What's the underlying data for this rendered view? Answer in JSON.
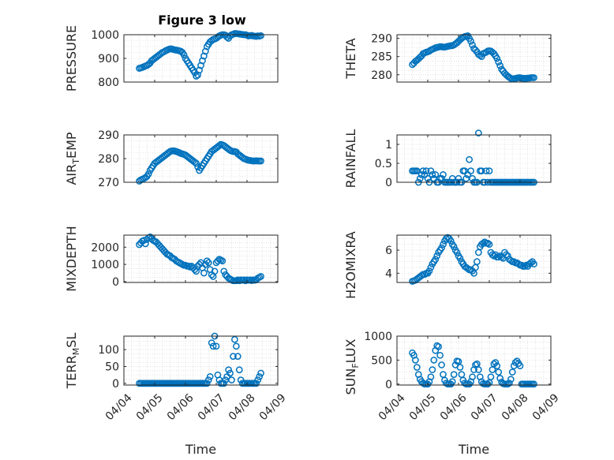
{
  "figure_title": "Figure 3 low",
  "xlabel": "Time",
  "x_ticks": [
    "04/04",
    "04/05",
    "04/06",
    "04/07",
    "04/08",
    "04/09"
  ],
  "marker_color": "#0072BD",
  "chart_data": [
    {
      "type": "scatter",
      "id": "pressure",
      "ylabel_main": "PRESSURE",
      "ylabel_sub": "",
      "ylabel_tail": "",
      "ylim": [
        800,
        1000
      ],
      "yticks": [
        800,
        900,
        1000
      ],
      "x": [
        4.5,
        4.55,
        4.6,
        4.65,
        4.7,
        4.75,
        4.8,
        4.85,
        4.9,
        4.95,
        5.0,
        5.05,
        5.1,
        5.15,
        5.2,
        5.25,
        5.3,
        5.35,
        5.4,
        5.45,
        5.5,
        5.55,
        5.6,
        5.65,
        5.7,
        5.75,
        5.8,
        5.85,
        5.9,
        5.95,
        6.0,
        6.05,
        6.1,
        6.15,
        6.2,
        6.25,
        6.3,
        6.35,
        6.4,
        6.45,
        6.5,
        6.55,
        6.6,
        6.65,
        6.7,
        6.75,
        6.8,
        6.85,
        6.9,
        6.95,
        7.0,
        7.05,
        7.1,
        7.15,
        7.2,
        7.25,
        7.3,
        7.35,
        7.4,
        7.45,
        7.5,
        7.55,
        7.6,
        7.65,
        7.7,
        7.75,
        7.8,
        7.85,
        7.9,
        7.95,
        8.0,
        8.05,
        8.1,
        8.15,
        8.2,
        8.25,
        8.3,
        8.35,
        8.4,
        8.45
      ],
      "y": [
        858,
        860,
        862,
        865,
        868,
        870,
        875,
        880,
        890,
        895,
        900,
        905,
        910,
        915,
        920,
        925,
        928,
        932,
        935,
        938,
        940,
        940,
        938,
        936,
        935,
        934,
        932,
        930,
        925,
        915,
        900,
        890,
        880,
        870,
        860,
        850,
        840,
        825,
        830,
        850,
        870,
        890,
        910,
        930,
        950,
        960,
        970,
        975,
        980,
        982,
        985,
        990,
        995,
        998,
        1000,
        1000,
        998,
        990,
        985,
        995,
        1000,
        1002,
        1005,
        1005,
        1004,
        1003,
        1002,
        1001,
        1000,
        1000,
        998,
        995,
        996,
        997,
        995,
        994,
        993,
        995,
        994,
        996
      ]
    },
    {
      "type": "scatter",
      "id": "theta",
      "ylabel_main": "THETA",
      "ylabel_sub": "",
      "ylabel_tail": "",
      "ylim": [
        278,
        291
      ],
      "yticks": [
        280,
        285,
        290
      ],
      "x": [
        4.5,
        4.55,
        4.6,
        4.65,
        4.7,
        4.75,
        4.8,
        4.85,
        4.9,
        4.95,
        5.0,
        5.05,
        5.1,
        5.15,
        5.2,
        5.25,
        5.3,
        5.35,
        5.4,
        5.45,
        5.5,
        5.55,
        5.6,
        5.65,
        5.7,
        5.75,
        5.8,
        5.85,
        5.9,
        5.95,
        6.0,
        6.05,
        6.1,
        6.15,
        6.2,
        6.25,
        6.3,
        6.35,
        6.4,
        6.45,
        6.5,
        6.55,
        6.6,
        6.65,
        6.7,
        6.75,
        6.8,
        6.85,
        6.9,
        6.95,
        7.0,
        7.05,
        7.1,
        7.15,
        7.2,
        7.25,
        7.3,
        7.35,
        7.4,
        7.45,
        7.5,
        7.55,
        7.6,
        7.65,
        7.7,
        7.75,
        7.8,
        7.85,
        7.9,
        7.95,
        8.0,
        8.05,
        8.1,
        8.15,
        8.2,
        8.25,
        8.3,
        8.35,
        8.4,
        8.45
      ],
      "y": [
        282.8,
        283.2,
        283.7,
        284.0,
        284.4,
        284.8,
        285.2,
        285.8,
        286.0,
        286.2,
        286.3,
        286.5,
        286.8,
        287.0,
        287.2,
        287.4,
        287.5,
        287.6,
        287.7,
        287.7,
        287.6,
        287.6,
        287.7,
        287.8,
        287.9,
        288.0,
        288.0,
        288.2,
        288.5,
        288.8,
        289.2,
        289.6,
        290.0,
        290.3,
        290.5,
        290.6,
        290.7,
        290.0,
        289.2,
        288.2,
        287.2,
        286.8,
        286.3,
        285.6,
        285.3,
        285.0,
        285.8,
        286.0,
        286.2,
        286.5,
        286.6,
        286.5,
        286.2,
        285.8,
        285.2,
        284.5,
        283.5,
        282.5,
        281.5,
        281.0,
        280.4,
        280.0,
        279.6,
        279.3,
        279.0,
        278.9,
        278.9,
        279.0,
        279.1,
        279.2,
        279.2,
        279.1,
        279.0,
        279.0,
        279.0,
        279.1,
        279.1,
        279.2,
        279.2,
        279.2
      ]
    },
    {
      "type": "scatter",
      "id": "air_temp",
      "ylabel_main": "AIR",
      "ylabel_sub": "T",
      "ylabel_tail": "EMP",
      "ylim": [
        270,
        290
      ],
      "yticks": [
        270,
        280,
        290
      ],
      "x": [
        4.5,
        4.55,
        4.6,
        4.65,
        4.7,
        4.75,
        4.8,
        4.85,
        4.9,
        4.95,
        5.0,
        5.05,
        5.1,
        5.15,
        5.2,
        5.25,
        5.3,
        5.35,
        5.4,
        5.45,
        5.5,
        5.55,
        5.6,
        5.65,
        5.7,
        5.75,
        5.8,
        5.85,
        5.9,
        5.95,
        6.0,
        6.05,
        6.1,
        6.15,
        6.2,
        6.25,
        6.3,
        6.35,
        6.4,
        6.45,
        6.5,
        6.55,
        6.6,
        6.65,
        6.7,
        6.75,
        6.8,
        6.85,
        6.9,
        6.95,
        7.0,
        7.05,
        7.1,
        7.15,
        7.2,
        7.25,
        7.3,
        7.35,
        7.4,
        7.45,
        7.5,
        7.55,
        7.6,
        7.65,
        7.7,
        7.75,
        7.8,
        7.85,
        7.9,
        7.95,
        8.0,
        8.05,
        8.1,
        8.15,
        8.2,
        8.25,
        8.3,
        8.35,
        8.4,
        8.45
      ],
      "y": [
        270.5,
        271.0,
        271.3,
        271.6,
        272.0,
        272.5,
        273.5,
        275,
        276,
        277,
        278,
        278.5,
        279,
        279.5,
        280,
        280.5,
        281,
        281.5,
        282,
        282.5,
        283,
        283.2,
        283.3,
        283.2,
        283.0,
        282.8,
        282.5,
        282.2,
        282.0,
        281.8,
        281.5,
        281.0,
        280.5,
        280,
        279.5,
        279,
        278.5,
        278,
        276.5,
        275,
        276,
        277,
        278,
        279,
        280,
        281,
        282,
        283,
        283.5,
        284,
        284.5,
        285,
        285.5,
        286,
        285.8,
        285.5,
        285,
        284.5,
        284,
        283.5,
        283.2,
        283,
        283,
        282.8,
        282,
        281.5,
        281,
        280.5,
        280,
        279.8,
        279.5,
        279.3,
        279.2,
        279.1,
        279.0,
        279.0,
        279.1,
        279.0,
        279.0,
        279.0
      ]
    },
    {
      "type": "scatter",
      "id": "rainfall",
      "ylabel_main": "RAINFALL",
      "ylabel_sub": "",
      "ylabel_tail": "",
      "ylim": [
        0,
        1.25
      ],
      "yticks": [
        0,
        0.5,
        1
      ],
      "ytick_labels": [
        "0",
        "0.5",
        "1"
      ],
      "x": [
        4.5,
        4.55,
        4.6,
        4.65,
        4.7,
        4.75,
        4.8,
        4.85,
        4.9,
        4.95,
        5.0,
        5.05,
        5.1,
        5.15,
        5.2,
        5.25,
        5.3,
        5.35,
        5.4,
        5.45,
        5.5,
        5.55,
        5.6,
        5.65,
        5.7,
        5.75,
        5.8,
        5.85,
        5.9,
        5.95,
        6.0,
        6.05,
        6.1,
        6.15,
        6.2,
        6.25,
        6.3,
        6.35,
        6.4,
        6.45,
        6.5,
        6.55,
        6.6,
        6.65,
        6.7,
        6.75,
        6.8,
        6.85,
        6.9,
        6.95,
        7.0,
        7.05,
        7.1,
        7.15,
        7.2,
        7.25,
        7.3,
        7.35,
        7.4,
        7.45,
        7.5,
        7.55,
        7.6,
        7.65,
        7.7,
        7.75,
        7.8,
        7.85,
        7.9,
        7.95,
        8.0,
        8.05,
        8.1,
        8.15,
        8.2,
        8.25,
        8.3,
        8.35,
        8.4,
        8.45
      ],
      "y": [
        0.3,
        0.3,
        0.3,
        0.3,
        0.0,
        0.1,
        0.2,
        0.3,
        0.2,
        0.3,
        0.1,
        0.0,
        0.3,
        0.2,
        0.1,
        0.2,
        0.0,
        0.0,
        0.1,
        0.1,
        0.2,
        0.0,
        0.0,
        0.0,
        0.0,
        0.0,
        0.1,
        0.0,
        0.0,
        0.0,
        0.1,
        0.0,
        0.0,
        0.3,
        0.3,
        0.1,
        0.2,
        0.6,
        0.3,
        0.1,
        0.0,
        0.0,
        0.0,
        1.3,
        0.3,
        0.3,
        0.0,
        0.0,
        0.3,
        0.0,
        0.3,
        0.0,
        0.0,
        0.0,
        0.0,
        0.0,
        0.0,
        0.0,
        0.0,
        0.0,
        0.0,
        0.0,
        0.0,
        0.0,
        0.0,
        0.0,
        0.0,
        0.0,
        0.0,
        0.0,
        0.0,
        0.0,
        0.0,
        0.0,
        0.0,
        0.0,
        0.0,
        0.0,
        0.0,
        0.0
      ]
    },
    {
      "type": "scatter",
      "id": "mixdepth",
      "ylabel_main": "MIXDEPTH",
      "ylabel_sub": "",
      "ylabel_tail": "",
      "ylim": [
        -50,
        2700
      ],
      "yticks": [
        0,
        1000,
        2000
      ],
      "x": [
        4.5,
        4.55,
        4.6,
        4.65,
        4.7,
        4.75,
        4.8,
        4.85,
        4.9,
        4.95,
        5.0,
        5.05,
        5.1,
        5.15,
        5.2,
        5.25,
        5.3,
        5.35,
        5.4,
        5.45,
        5.5,
        5.55,
        5.6,
        5.65,
        5.7,
        5.75,
        5.8,
        5.85,
        5.9,
        5.95,
        6.0,
        6.05,
        6.1,
        6.15,
        6.2,
        6.25,
        6.3,
        6.35,
        6.4,
        6.45,
        6.5,
        6.55,
        6.6,
        6.65,
        6.7,
        6.75,
        6.8,
        6.85,
        6.9,
        6.95,
        7.0,
        7.05,
        7.1,
        7.15,
        7.2,
        7.25,
        7.3,
        7.35,
        7.4,
        7.45,
        7.5,
        7.55,
        7.6,
        7.65,
        7.7,
        7.75,
        7.8,
        7.85,
        7.9,
        7.95,
        8.0,
        8.05,
        8.1,
        8.15,
        8.2,
        8.25,
        8.3,
        8.35,
        8.4,
        8.45
      ],
      "y": [
        2150,
        2250,
        2350,
        2400,
        2200,
        2450,
        2550,
        2600,
        2500,
        2400,
        2350,
        2300,
        2200,
        2100,
        2000,
        1900,
        1800,
        1700,
        1600,
        1550,
        1500,
        1400,
        1350,
        1300,
        1200,
        1150,
        1100,
        1050,
        1000,
        950,
        950,
        900,
        900,
        850,
        900,
        800,
        700,
        600,
        900,
        1000,
        1100,
        800,
        500,
        1000,
        1200,
        1100,
        700,
        400,
        300,
        600,
        1100,
        1200,
        1300,
        1250,
        1200,
        600,
        400,
        300,
        200,
        150,
        100,
        50,
        50,
        50,
        100,
        50,
        100,
        80,
        100,
        50,
        100,
        80,
        100,
        60,
        100,
        80,
        100,
        200,
        250,
        300
      ]
    },
    {
      "type": "scatter",
      "id": "h2omixra",
      "ylabel_main": "H2OMIXRA",
      "ylabel_sub": "",
      "ylabel_tail": "",
      "ylim": [
        3.2,
        7.3
      ],
      "yticks": [
        4,
        6
      ],
      "x": [
        4.5,
        4.55,
        4.6,
        4.65,
        4.7,
        4.75,
        4.8,
        4.85,
        4.9,
        4.95,
        5.0,
        5.05,
        5.1,
        5.15,
        5.2,
        5.25,
        5.3,
        5.35,
        5.4,
        5.45,
        5.5,
        5.55,
        5.6,
        5.65,
        5.7,
        5.75,
        5.8,
        5.85,
        5.9,
        5.95,
        6.0,
        6.05,
        6.1,
        6.15,
        6.2,
        6.25,
        6.3,
        6.35,
        6.4,
        6.45,
        6.5,
        6.55,
        6.6,
        6.65,
        6.7,
        6.75,
        6.8,
        6.85,
        6.9,
        6.95,
        7.0,
        7.05,
        7.1,
        7.15,
        7.2,
        7.25,
        7.3,
        7.35,
        7.4,
        7.45,
        7.5,
        7.55,
        7.6,
        7.65,
        7.7,
        7.75,
        7.8,
        7.85,
        7.9,
        7.95,
        8.0,
        8.05,
        8.1,
        8.15,
        8.2,
        8.25,
        8.3,
        8.35,
        8.4,
        8.45
      ],
      "y": [
        3.3,
        3.35,
        3.4,
        3.5,
        3.6,
        3.7,
        3.8,
        3.9,
        3.9,
        4.0,
        4.0,
        4.2,
        4.5,
        4.8,
        5.0,
        5.2,
        5.5,
        5.8,
        6.0,
        6.2,
        6.5,
        6.8,
        7.0,
        7.1,
        7.0,
        6.8,
        6.5,
        6.3,
        6.0,
        5.8,
        5.5,
        5.3,
        5.0,
        4.8,
        4.6,
        4.5,
        4.4,
        4.3,
        4.3,
        4.2,
        4.0,
        4.5,
        5.0,
        5.8,
        6.3,
        6.5,
        6.6,
        6.7,
        6.6,
        6.6,
        6.5,
        5.8,
        5.6,
        5.5,
        5.6,
        5.4,
        5.4,
        5.5,
        5.4,
        5.3,
        5.8,
        5.6,
        5.5,
        5.2,
        5.1,
        5.0,
        5.0,
        4.9,
        4.9,
        4.8,
        4.7,
        4.7,
        4.6,
        4.6,
        4.7,
        4.6,
        4.8,
        4.9,
        5.0,
        4.8
      ]
    },
    {
      "type": "scatter",
      "id": "terr_msl",
      "ylabel_main": "TERR",
      "ylabel_sub": "M",
      "ylabel_tail": "SL",
      "ylim": [
        -5,
        140
      ],
      "yticks": [
        0,
        50,
        100
      ],
      "x": [
        4.5,
        4.55,
        4.6,
        4.65,
        4.7,
        4.75,
        4.8,
        4.85,
        4.9,
        4.95,
        5.0,
        5.05,
        5.1,
        5.15,
        5.2,
        5.25,
        5.3,
        5.35,
        5.4,
        5.45,
        5.5,
        5.55,
        5.6,
        5.65,
        5.7,
        5.75,
        5.8,
        5.85,
        5.9,
        5.95,
        6.0,
        6.05,
        6.1,
        6.15,
        6.2,
        6.25,
        6.3,
        6.35,
        6.4,
        6.45,
        6.5,
        6.55,
        6.6,
        6.65,
        6.7,
        6.75,
        6.8,
        6.85,
        6.9,
        6.95,
        7.0,
        7.05,
        7.1,
        7.15,
        7.2,
        7.25,
        7.3,
        7.35,
        7.4,
        7.45,
        7.5,
        7.55,
        7.6,
        7.65,
        7.7,
        7.75,
        7.8,
        7.85,
        7.9,
        7.95,
        8.0,
        8.05,
        8.1,
        8.15,
        8.2,
        8.25,
        8.3,
        8.35,
        8.4,
        8.45
      ],
      "y": [
        0,
        0,
        0,
        0,
        0,
        0,
        0,
        0,
        0,
        0,
        0,
        0,
        0,
        0,
        0,
        0,
        0,
        0,
        0,
        0,
        0,
        0,
        0,
        0,
        0,
        0,
        0,
        0,
        0,
        0,
        0,
        0,
        0,
        0,
        0,
        0,
        0,
        0,
        0,
        0,
        0,
        0,
        0,
        0,
        0,
        10,
        20,
        120,
        110,
        140,
        110,
        25,
        10,
        0,
        0,
        0,
        10,
        20,
        40,
        30,
        10,
        80,
        130,
        110,
        80,
        40,
        10,
        0,
        0,
        0,
        0,
        0,
        0,
        0,
        0,
        0,
        0,
        10,
        20,
        30
      ]
    },
    {
      "type": "scatter",
      "id": "sun_flux",
      "ylabel_main": "SUN",
      "ylabel_sub": "F",
      "ylabel_tail": "LUX",
      "ylim": [
        -20,
        1000
      ],
      "yticks": [
        0,
        500,
        1000
      ],
      "x": [
        4.5,
        4.55,
        4.6,
        4.65,
        4.7,
        4.75,
        4.8,
        4.85,
        4.9,
        4.95,
        5.0,
        5.05,
        5.1,
        5.15,
        5.2,
        5.25,
        5.3,
        5.35,
        5.4,
        5.45,
        5.5,
        5.55,
        5.6,
        5.65,
        5.7,
        5.75,
        5.8,
        5.85,
        5.9,
        5.95,
        6.0,
        6.05,
        6.1,
        6.15,
        6.2,
        6.25,
        6.3,
        6.35,
        6.4,
        6.45,
        6.5,
        6.55,
        6.6,
        6.65,
        6.7,
        6.75,
        6.8,
        6.85,
        6.9,
        6.95,
        7.0,
        7.05,
        7.1,
        7.15,
        7.2,
        7.25,
        7.3,
        7.35,
        7.4,
        7.45,
        7.5,
        7.55,
        7.6,
        7.65,
        7.7,
        7.75,
        7.8,
        7.85,
        7.9,
        7.95,
        8.0,
        8.05,
        8.1,
        8.15,
        8.2,
        8.25,
        8.3,
        8.35,
        8.4,
        8.45
      ],
      "y": [
        650,
        600,
        500,
        350,
        200,
        100,
        50,
        20,
        0,
        0,
        0,
        50,
        150,
        300,
        500,
        700,
        800,
        780,
        600,
        400,
        200,
        80,
        20,
        0,
        0,
        0,
        50,
        200,
        400,
        480,
        470,
        350,
        200,
        80,
        20,
        0,
        0,
        0,
        50,
        150,
        300,
        400,
        420,
        300,
        150,
        50,
        10,
        0,
        0,
        0,
        30,
        150,
        300,
        420,
        450,
        380,
        250,
        120,
        40,
        10,
        0,
        0,
        0,
        20,
        100,
        250,
        380,
        450,
        480,
        430,
        380,
        0,
        0,
        0,
        0,
        0,
        0,
        0,
        0,
        0
      ]
    }
  ]
}
